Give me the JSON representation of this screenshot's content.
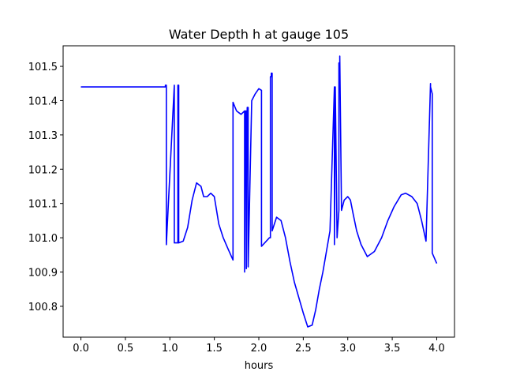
{
  "chart_data": {
    "type": "line",
    "title": "Water Depth h at gauge 105",
    "xlabel": "hours",
    "ylabel": "",
    "xlim": [
      -0.2,
      4.2
    ],
    "ylim": [
      100.71,
      101.56
    ],
    "xticks": [
      0.0,
      0.5,
      1.0,
      1.5,
      2.0,
      2.5,
      3.0,
      3.5,
      4.0
    ],
    "xtick_labels": [
      "0.0",
      "0.5",
      "1.0",
      "1.5",
      "2.0",
      "2.5",
      "3.0",
      "3.5",
      "4.0"
    ],
    "yticks": [
      100.8,
      100.9,
      101.0,
      101.1,
      101.2,
      101.3,
      101.4,
      101.5
    ],
    "ytick_labels": [
      "100.8",
      "100.9",
      "101.0",
      "101.1",
      "101.2",
      "101.3",
      "101.4",
      "101.5"
    ],
    "grid": false,
    "legend": "none",
    "color": "#0000ff",
    "series": [
      {
        "x": [
          0.0,
          0.95,
          0.95,
          0.96,
          0.96,
          1.05,
          1.05,
          1.08,
          1.09,
          1.09,
          1.1,
          1.1,
          1.15,
          1.2,
          1.25,
          1.3,
          1.35,
          1.38,
          1.42,
          1.46,
          1.5,
          1.55,
          1.6,
          1.65,
          1.71,
          1.71,
          1.75,
          1.8,
          1.84,
          1.84,
          1.85,
          1.86,
          1.86,
          1.87,
          1.88,
          1.88,
          1.92,
          1.96,
          2.0,
          2.03,
          2.03,
          2.12,
          2.13,
          2.13,
          2.14,
          2.14,
          2.15,
          2.15,
          2.2,
          2.25,
          2.3,
          2.35,
          2.4,
          2.5,
          2.55,
          2.6,
          2.64,
          2.68,
          2.72,
          2.8,
          2.85,
          2.85,
          2.86,
          2.86,
          2.88,
          2.9,
          2.9,
          2.91,
          2.91,
          2.93,
          2.96,
          3.0,
          3.03,
          3.06,
          3.1,
          3.15,
          3.22,
          3.3,
          3.38,
          3.45,
          3.52,
          3.6,
          3.65,
          3.72,
          3.78,
          3.83,
          3.88,
          3.93,
          3.93,
          3.95,
          3.95,
          4.0
        ],
        "y": [
          101.44,
          101.44,
          101.445,
          101.445,
          100.98,
          101.445,
          100.985,
          100.985,
          100.985,
          101.445,
          101.445,
          100.985,
          100.99,
          101.03,
          101.11,
          101.16,
          101.15,
          101.12,
          101.12,
          101.13,
          101.12,
          101.04,
          101.0,
          100.97,
          100.935,
          101.395,
          101.37,
          101.36,
          101.37,
          100.9,
          101.37,
          101.37,
          100.91,
          101.38,
          101.38,
          100.915,
          101.4,
          101.42,
          101.435,
          101.43,
          100.975,
          101.0,
          101.0,
          101.47,
          101.47,
          101.48,
          101.48,
          101.02,
          101.06,
          101.05,
          101.0,
          100.93,
          100.87,
          100.78,
          100.74,
          100.745,
          100.79,
          100.85,
          100.9,
          101.02,
          101.44,
          100.98,
          101.44,
          101.44,
          101.0,
          101.08,
          101.51,
          101.51,
          101.53,
          101.08,
          101.11,
          101.12,
          101.11,
          101.07,
          101.02,
          100.98,
          100.945,
          100.96,
          101.0,
          101.05,
          101.09,
          101.125,
          101.13,
          101.12,
          101.1,
          101.05,
          100.99,
          101.45,
          101.44,
          101.42,
          100.955,
          100.925
        ]
      }
    ]
  }
}
